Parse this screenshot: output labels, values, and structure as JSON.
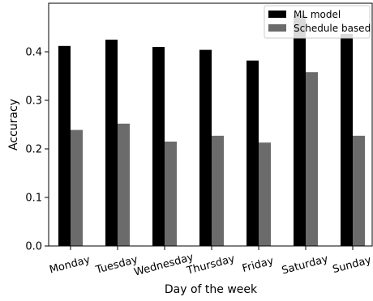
{
  "chart_data": {
    "type": "bar",
    "xlabel": "Day of the week",
    "ylabel": "Accuracy",
    "categories": [
      "Monday",
      "Tuesday",
      "Wednesday",
      "Thursday",
      "Friday",
      "Saturday",
      "Sunday"
    ],
    "series": [
      {
        "name": "ML model",
        "color": "#000000",
        "values": [
          0.412,
          0.425,
          0.41,
          0.404,
          0.382,
          0.475,
          0.437
        ]
      },
      {
        "name": "Schedule based",
        "color": "#6b6b6b",
        "values": [
          0.239,
          0.252,
          0.215,
          0.227,
          0.213,
          0.358,
          0.227
        ]
      }
    ],
    "ylim": [
      0,
      0.5
    ],
    "yticks": [
      "0.0",
      "0.1",
      "0.2",
      "0.3",
      "0.4"
    ],
    "legend": "top-right",
    "grid": false
  }
}
